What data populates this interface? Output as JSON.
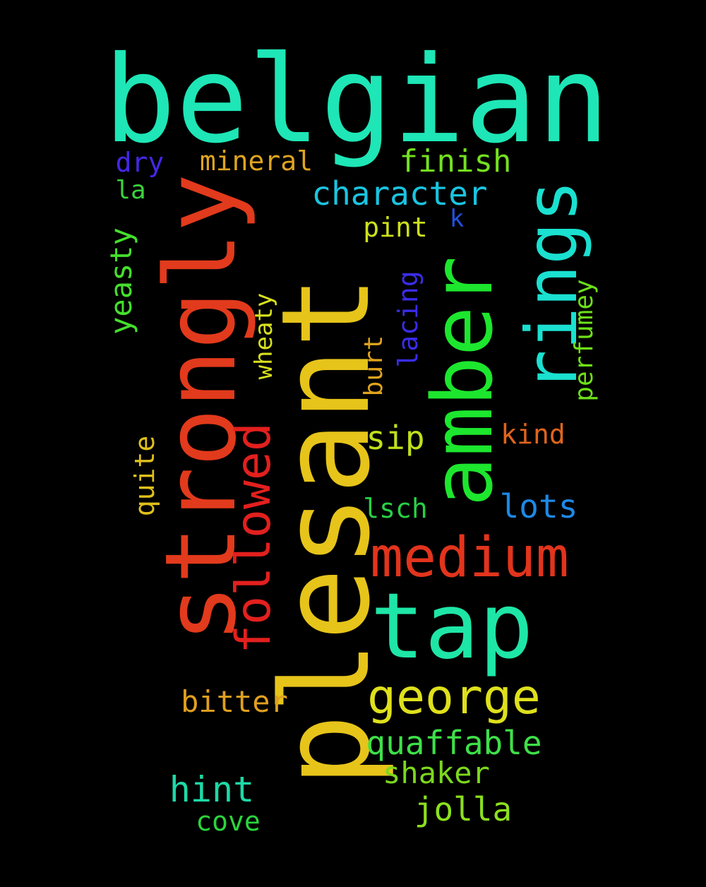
{
  "words": [
    {
      "text": "belgian",
      "color": "#1ee6b6"
    },
    {
      "text": "plesant",
      "color": "#e6c41a"
    },
    {
      "text": "strongly",
      "color": "#e23a1c"
    },
    {
      "text": "amber",
      "color": "#1de62e"
    },
    {
      "text": "rings",
      "color": "#1ae0d0"
    },
    {
      "text": "tap",
      "color": "#1ee6a6"
    },
    {
      "text": "medium",
      "color": "#e2341c"
    },
    {
      "text": "followed",
      "color": "#e2201e"
    },
    {
      "text": "george",
      "color": "#dfe01c"
    },
    {
      "text": "quaffable",
      "color": "#3ee048"
    },
    {
      "text": "character",
      "color": "#1ac4e0"
    },
    {
      "text": "finish",
      "color": "#74e020"
    },
    {
      "text": "mineral",
      "color": "#e0a420"
    },
    {
      "text": "dry",
      "color": "#4428e6"
    },
    {
      "text": "la",
      "color": "#3cd23c"
    },
    {
      "text": "pint",
      "color": "#cce01c"
    },
    {
      "text": "k",
      "color": "#2250e0"
    },
    {
      "text": "yeasty",
      "color": "#44e02c"
    },
    {
      "text": "wheaty",
      "color": "#d8e01e"
    },
    {
      "text": "lacing",
      "color": "#3a2cea"
    },
    {
      "text": "burt",
      "color": "#e0a41e"
    },
    {
      "text": "perfumey",
      "color": "#6ce018"
    },
    {
      "text": "sip",
      "color": "#c0e01c"
    },
    {
      "text": "kind",
      "color": "#e0641c"
    },
    {
      "text": "quite",
      "color": "#e0c01c"
    },
    {
      "text": "lsch",
      "color": "#28d044"
    },
    {
      "text": "lots",
      "color": "#1e88e6"
    },
    {
      "text": "bitter",
      "color": "#e0a01e"
    },
    {
      "text": "shaker",
      "color": "#7cd81e"
    },
    {
      "text": "hint",
      "color": "#1ed8a6"
    },
    {
      "text": "jolla",
      "color": "#8ce01e"
    },
    {
      "text": "cove",
      "color": "#2ad43c"
    }
  ]
}
